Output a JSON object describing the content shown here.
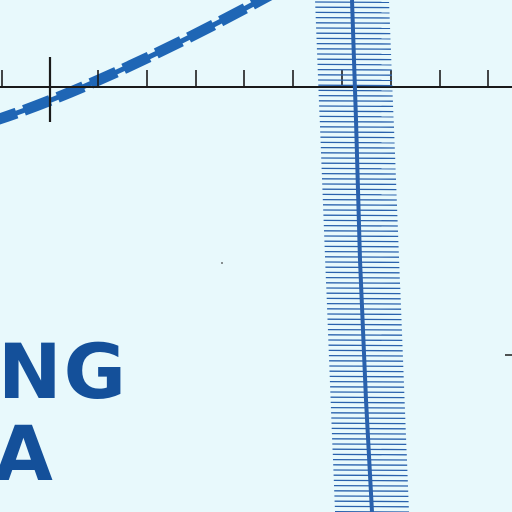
{
  "map": {
    "background_color": "#e8f9fc",
    "water_label_color": "#14509a",
    "line_color": "#1a1a1a",
    "meridian_color": "#2a62ad",
    "boundary_color": "#1f66b5"
  },
  "labels": {
    "line1": "NG",
    "line2": "A"
  }
}
